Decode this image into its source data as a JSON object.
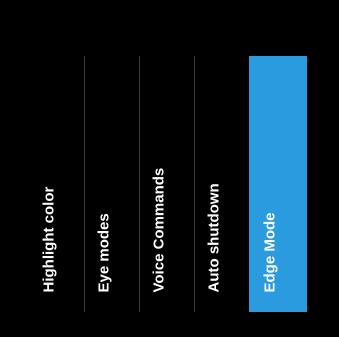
{
  "menu": {
    "items": [
      {
        "label": "Highlight color",
        "selected": false
      },
      {
        "label": "Eye modes",
        "selected": false
      },
      {
        "label": "Voice Commands",
        "selected": false
      },
      {
        "label": "Auto shutdown",
        "selected": false
      },
      {
        "label": "Edge Mode",
        "selected": true
      }
    ]
  },
  "colors": {
    "background": "#000000",
    "selected_highlight": "#2b9be0",
    "divider": "#3a3a3a",
    "text": "#ffffff"
  }
}
